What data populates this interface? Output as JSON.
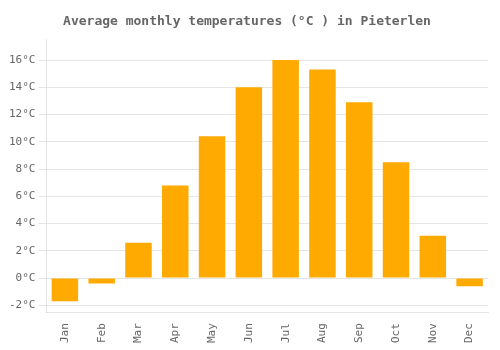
{
  "chart_data": {
    "type": "bar",
    "title": "Average monthly temperatures (°C ) in Pieterlen",
    "categories": [
      "Jan",
      "Feb",
      "Mar",
      "Apr",
      "May",
      "Jun",
      "Jul",
      "Aug",
      "Sep",
      "Oct",
      "Nov",
      "Dec"
    ],
    "values": [
      -1.7,
      -0.4,
      2.6,
      6.8,
      10.4,
      14.0,
      16.0,
      15.3,
      12.9,
      8.5,
      3.1,
      -0.6
    ],
    "color": "#FFAA00",
    "ylim": [
      -2.5,
      17.5
    ],
    "yticks": [
      {
        "value": -2,
        "label": "-2°C"
      },
      {
        "value": 0,
        "label": "0°C"
      },
      {
        "value": 2,
        "label": "2°C"
      },
      {
        "value": 4,
        "label": "4°C"
      },
      {
        "value": 6,
        "label": "6°C"
      },
      {
        "value": 8,
        "label": "8°C"
      },
      {
        "value": 10,
        "label": "10°C"
      },
      {
        "value": 12,
        "label": "12°C"
      },
      {
        "value": 14,
        "label": "14°C"
      },
      {
        "value": 16,
        "label": "16°C"
      }
    ],
    "grid": true
  }
}
